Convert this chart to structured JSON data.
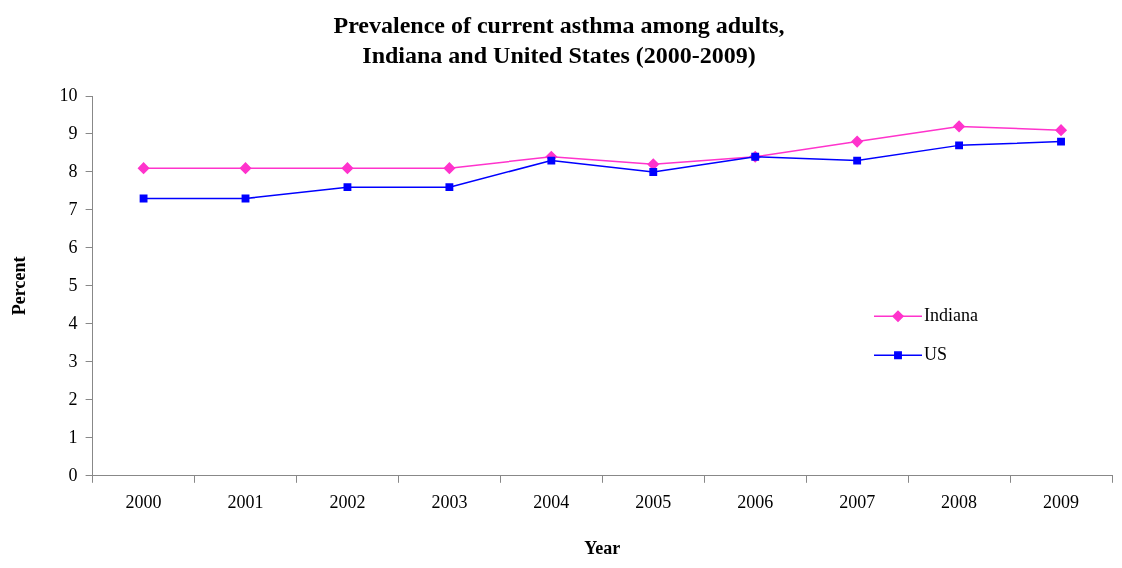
{
  "chart_data": {
    "type": "line",
    "title": "Prevalence of current asthma among adults,\nIndiana and United States (2000-2009)",
    "xlabel": "Year",
    "ylabel": "Percent",
    "categories": [
      "2000",
      "2001",
      "2002",
      "2003",
      "2004",
      "2005",
      "2006",
      "2007",
      "2008",
      "2009"
    ],
    "series": [
      {
        "name": "Indiana",
        "color": "#ff33cc",
        "marker": "diamond",
        "values": [
          8.1,
          8.1,
          8.1,
          8.1,
          8.4,
          8.2,
          8.4,
          8.8,
          9.2,
          9.1
        ]
      },
      {
        "name": "US",
        "color": "#0000ff",
        "marker": "square",
        "values": [
          7.3,
          7.3,
          7.6,
          7.6,
          8.3,
          8.0,
          8.4,
          8.3,
          8.7,
          8.8
        ]
      }
    ],
    "ylim": [
      0,
      10
    ],
    "yticks": [
      0,
      1,
      2,
      3,
      4,
      5,
      6,
      7,
      8,
      9,
      10
    ],
    "grid": false,
    "legend": "right",
    "line_style": "solid"
  }
}
